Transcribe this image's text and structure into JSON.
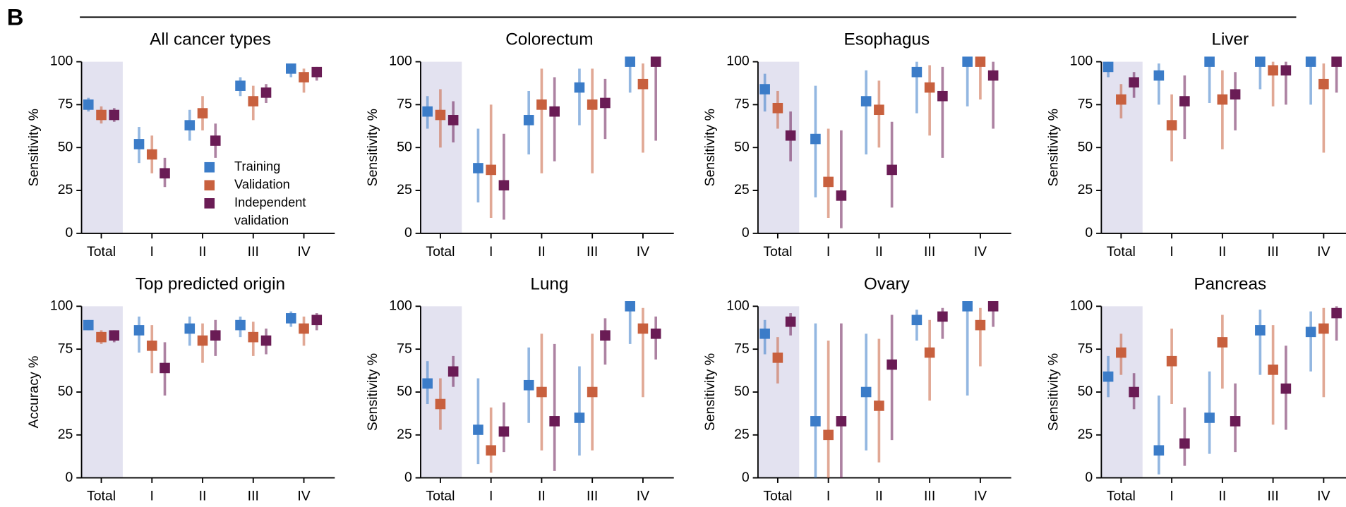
{
  "panel_label": "B",
  "chart_data": [
    {
      "type": "errorbar",
      "title": "All cancer types",
      "y_label": "Sensitivity %",
      "categories": [
        "Total",
        "I",
        "II",
        "III",
        "IV"
      ],
      "ylim": [
        0,
        100
      ],
      "yticks": [
        0,
        25,
        50,
        75,
        100
      ],
      "shade_first": true,
      "series": [
        {
          "name": "Training",
          "color": "#3b7cc8",
          "values": [
            75,
            52,
            63,
            86,
            96
          ],
          "lower": [
            71,
            41,
            54,
            80,
            91
          ],
          "upper": [
            79,
            62,
            72,
            91,
            99
          ]
        },
        {
          "name": "Validation",
          "color": "#c8603e",
          "values": [
            69,
            46,
            70,
            77,
            91
          ],
          "lower": [
            64,
            35,
            60,
            66,
            82
          ],
          "upper": [
            74,
            57,
            80,
            86,
            96
          ]
        },
        {
          "name": "Independent validation",
          "color": "#6a1c55",
          "values": [
            69,
            35,
            54,
            82,
            94
          ],
          "lower": [
            65,
            27,
            44,
            76,
            89
          ],
          "upper": [
            73,
            44,
            64,
            87,
            97
          ]
        }
      ]
    },
    {
      "type": "errorbar",
      "title": "Colorectum",
      "y_label": "Sensitivity %",
      "categories": [
        "Total",
        "I",
        "II",
        "III",
        "IV"
      ],
      "ylim": [
        0,
        100
      ],
      "yticks": [
        0,
        25,
        50,
        75,
        100
      ],
      "shade_first": true,
      "series": [
        {
          "color": "#3b7cc8",
          "values": [
            71,
            38,
            66,
            85,
            100
          ],
          "lower": [
            61,
            18,
            46,
            63,
            82
          ],
          "upper": [
            80,
            61,
            83,
            96,
            100
          ]
        },
        {
          "color": "#c8603e",
          "values": [
            69,
            37,
            75,
            75,
            87
          ],
          "lower": [
            50,
            9,
            35,
            35,
            47
          ],
          "upper": [
            84,
            75,
            96,
            96,
            99
          ]
        },
        {
          "color": "#6a1c55",
          "values": [
            66,
            28,
            71,
            76,
            100
          ],
          "lower": [
            53,
            8,
            42,
            55,
            54
          ],
          "upper": [
            77,
            58,
            91,
            90,
            100
          ]
        }
      ]
    },
    {
      "type": "errorbar",
      "title": "Esophagus",
      "y_label": "Sensitivity %",
      "categories": [
        "Total",
        "I",
        "II",
        "III",
        "IV"
      ],
      "ylim": [
        0,
        100
      ],
      "yticks": [
        0,
        25,
        50,
        75,
        100
      ],
      "shade_first": true,
      "series": [
        {
          "color": "#3b7cc8",
          "values": [
            84,
            55,
            77,
            94,
            100
          ],
          "lower": [
            71,
            21,
            46,
            70,
            74
          ],
          "upper": [
            93,
            86,
            95,
            100,
            100
          ]
        },
        {
          "color": "#c8603e",
          "values": [
            73,
            30,
            72,
            85,
            100
          ],
          "lower": [
            61,
            9,
            50,
            57,
            78
          ],
          "upper": [
            83,
            61,
            89,
            98,
            100
          ]
        },
        {
          "color": "#6a1c55",
          "values": [
            57,
            22,
            37,
            80,
            92
          ],
          "lower": [
            42,
            3,
            15,
            44,
            61
          ],
          "upper": [
            71,
            60,
            65,
            97,
            100
          ]
        }
      ]
    },
    {
      "type": "errorbar",
      "title": "Liver",
      "y_label": "Sensitivity %",
      "categories": [
        "Total",
        "I",
        "II",
        "III",
        "IV"
      ],
      "ylim": [
        0,
        100
      ],
      "yticks": [
        0,
        25,
        50,
        75,
        100
      ],
      "shade_first": true,
      "series": [
        {
          "color": "#3b7cc8",
          "values": [
            97,
            92,
            100,
            100,
            100
          ],
          "lower": [
            91,
            75,
            76,
            84,
            75
          ],
          "upper": [
            100,
            99,
            100,
            100,
            100
          ]
        },
        {
          "color": "#c8603e",
          "values": [
            78,
            63,
            78,
            95,
            87
          ],
          "lower": [
            67,
            42,
            49,
            74,
            47
          ],
          "upper": [
            87,
            81,
            95,
            100,
            99
          ]
        },
        {
          "color": "#6a1c55",
          "values": [
            88,
            77,
            81,
            95,
            100
          ],
          "lower": [
            79,
            55,
            60,
            75,
            82
          ],
          "upper": [
            94,
            92,
            94,
            100,
            100
          ]
        }
      ]
    },
    {
      "type": "errorbar",
      "title": "Top predicted origin",
      "y_label": "Accuracy %",
      "categories": [
        "Total",
        "I",
        "II",
        "III",
        "IV"
      ],
      "ylim": [
        0,
        100
      ],
      "yticks": [
        0,
        25,
        50,
        75,
        100
      ],
      "shade_first": true,
      "series": [
        {
          "color": "#3b7cc8",
          "values": [
            89,
            86,
            87,
            89,
            93
          ],
          "lower": [
            86,
            73,
            77,
            82,
            88
          ],
          "upper": [
            92,
            94,
            94,
            94,
            97
          ]
        },
        {
          "color": "#c8603e",
          "values": [
            82,
            77,
            80,
            82,
            87
          ],
          "lower": [
            78,
            61,
            67,
            71,
            77
          ],
          "upper": [
            86,
            89,
            90,
            91,
            94
          ]
        },
        {
          "color": "#6a1c55",
          "values": [
            83,
            64,
            83,
            80,
            92
          ],
          "lower": [
            79,
            48,
            71,
            72,
            86
          ],
          "upper": [
            86,
            79,
            92,
            87,
            96
          ]
        }
      ]
    },
    {
      "type": "errorbar",
      "title": "Lung",
      "y_label": "Sensitivity %",
      "categories": [
        "Total",
        "I",
        "II",
        "III",
        "IV"
      ],
      "ylim": [
        0,
        100
      ],
      "yticks": [
        0,
        25,
        50,
        75,
        100
      ],
      "shade_first": true,
      "series": [
        {
          "color": "#3b7cc8",
          "values": [
            55,
            28,
            54,
            35,
            100
          ],
          "lower": [
            43,
            8,
            32,
            13,
            78
          ],
          "upper": [
            68,
            58,
            76,
            65,
            100
          ]
        },
        {
          "color": "#c8603e",
          "values": [
            43,
            16,
            50,
            50,
            87
          ],
          "lower": [
            28,
            3,
            16,
            16,
            47
          ],
          "upper": [
            58,
            41,
            84,
            84,
            99
          ]
        },
        {
          "color": "#6a1c55",
          "values": [
            62,
            27,
            33,
            83,
            84
          ],
          "lower": [
            53,
            15,
            4,
            66,
            69
          ],
          "upper": [
            71,
            44,
            78,
            93,
            94
          ]
        }
      ]
    },
    {
      "type": "errorbar",
      "title": "Ovary",
      "y_label": "Sensitivity %",
      "categories": [
        "Total",
        "I",
        "II",
        "III",
        "IV"
      ],
      "ylim": [
        0,
        100
      ],
      "yticks": [
        0,
        25,
        50,
        75,
        100
      ],
      "shade_first": true,
      "series": [
        {
          "color": "#3b7cc8",
          "values": [
            84,
            33,
            50,
            92,
            100
          ],
          "lower": [
            72,
            0,
            16,
            80,
            48
          ],
          "upper": [
            92,
            90,
            84,
            98,
            100
          ]
        },
        {
          "color": "#c8603e",
          "values": [
            70,
            25,
            42,
            73,
            89
          ],
          "lower": [
            55,
            0,
            9,
            45,
            65
          ],
          "upper": [
            82,
            80,
            81,
            92,
            99
          ]
        },
        {
          "color": "#6a1c55",
          "values": [
            91,
            33,
            66,
            94,
            100
          ],
          "lower": [
            83,
            0,
            22,
            81,
            88
          ],
          "upper": [
            96,
            90,
            95,
            99,
            100
          ]
        }
      ]
    },
    {
      "type": "errorbar",
      "title": "Pancreas",
      "y_label": "Sensitivity %",
      "categories": [
        "Total",
        "I",
        "II",
        "III",
        "IV"
      ],
      "ylim": [
        0,
        100
      ],
      "yticks": [
        0,
        25,
        50,
        75,
        100
      ],
      "shade_first": true,
      "series": [
        {
          "color": "#3b7cc8",
          "values": [
            59,
            16,
            35,
            86,
            85
          ],
          "lower": [
            47,
            2,
            14,
            60,
            62
          ],
          "upper": [
            71,
            48,
            62,
            98,
            97
          ]
        },
        {
          "color": "#c8603e",
          "values": [
            73,
            68,
            79,
            63,
            87
          ],
          "lower": [
            60,
            43,
            52,
            31,
            47
          ],
          "upper": [
            84,
            87,
            95,
            89,
            99
          ]
        },
        {
          "color": "#6a1c55",
          "values": [
            50,
            20,
            33,
            52,
            96
          ],
          "lower": [
            40,
            7,
            15,
            28,
            80
          ],
          "upper": [
            61,
            41,
            55,
            77,
            100
          ]
        }
      ]
    }
  ]
}
